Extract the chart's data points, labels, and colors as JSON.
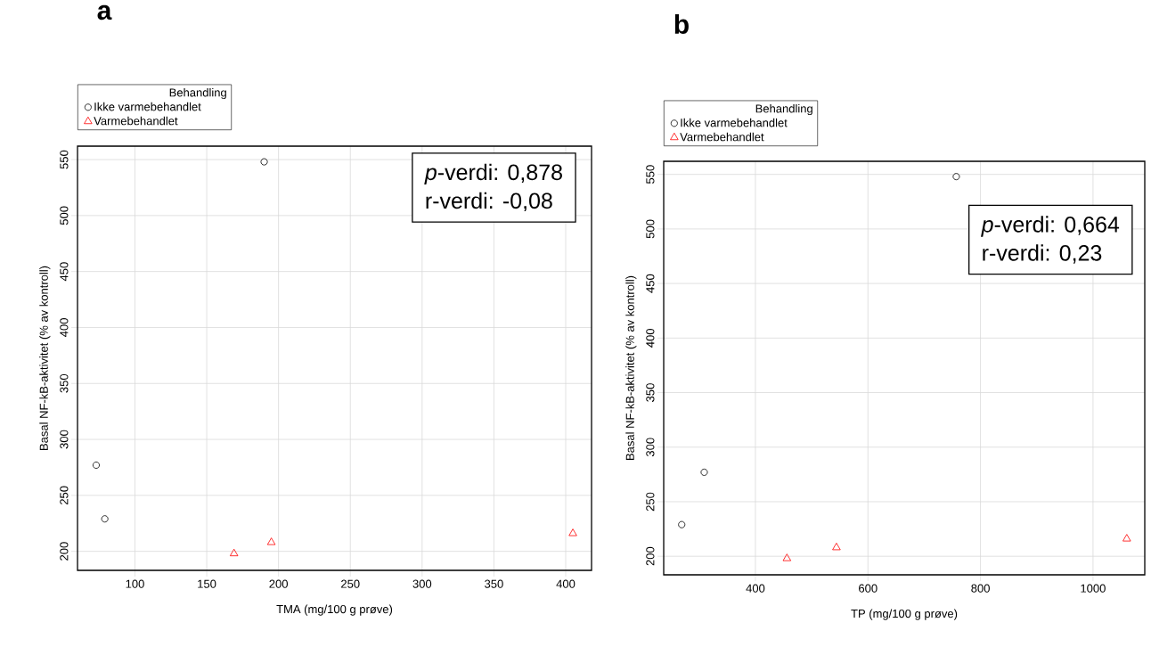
{
  "chart_data": [
    {
      "type": "scatter",
      "title": "a",
      "xlabel": "TMA (mg/100 g prøve)",
      "ylabel": "Basal NF-kB-aktivitet (% av kontroll)",
      "legend_title": "Behandling",
      "legend": "top left",
      "grid": true,
      "xlim": [
        60,
        418
      ],
      "ylim": [
        183,
        562
      ],
      "xticks": [
        100,
        150,
        200,
        250,
        300,
        350,
        400
      ],
      "yticks": [
        200,
        250,
        300,
        350,
        400,
        450,
        500,
        550
      ],
      "series": [
        {
          "name": "Ikke varmebehandlet",
          "color": "#000000",
          "marker": "circle",
          "x": [
            73,
            79,
            190
          ],
          "values": [
            277,
            229,
            548
          ]
        },
        {
          "name": "Varmebehandlet",
          "color": "#ff0000",
          "marker": "triangle",
          "x": [
            169,
            195,
            405
          ],
          "values": [
            198,
            208,
            216
          ]
        }
      ],
      "annotations": [
        "*p*-verdi:   0,878",
        "r-verdi: -0,08"
      ]
    },
    {
      "type": "scatter",
      "title": "b",
      "xlabel": "TP (mg/100 g prøve)",
      "ylabel": "Basal NF-kB-aktivitet (% av kontroll)",
      "legend_title": "Behandling",
      "legend": "top left",
      "grid": true,
      "xlim": [
        237,
        1092
      ],
      "ylim": [
        183,
        562
      ],
      "xticks": [
        400,
        600,
        800,
        1000
      ],
      "yticks": [
        200,
        250,
        300,
        350,
        400,
        450,
        500,
        550
      ],
      "series": [
        {
          "name": "Ikke varmebehandlet",
          "color": "#000000",
          "marker": "circle",
          "x": [
            269,
            309,
            757
          ],
          "values": [
            229,
            277,
            548
          ]
        },
        {
          "name": "Varmebehandlet",
          "color": "#ff0000",
          "marker": "triangle",
          "x": [
            456,
            544,
            1060
          ],
          "values": [
            198,
            208,
            216
          ]
        }
      ],
      "annotations": [
        "*p*-verdi:     0,664",
        "r-verdi: 0,23"
      ]
    }
  ]
}
